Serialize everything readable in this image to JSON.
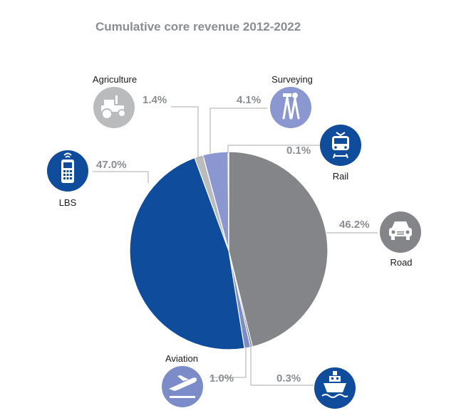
{
  "chart_data": {
    "type": "pie",
    "title": "Cumulative core revenue 2012-2022",
    "start_category": "Road",
    "direction": "clockwise",
    "slices": [
      {
        "category": "Road",
        "value": 46.2,
        "label": "46.2%",
        "color": "#848589",
        "icon": "car-front-icon"
      },
      {
        "category": "Maritime",
        "value": 0.3,
        "label": "0.3%",
        "color": "#5c6678",
        "icon": "ship-icon"
      },
      {
        "category": "Aviation",
        "value": 1.0,
        "label": "1.0%",
        "color": "#7b8cc8",
        "icon": "airplane-takeoff-icon"
      },
      {
        "category": "LBS",
        "value": 47.0,
        "label": "47.0%",
        "color": "#0f4c9c",
        "icon": "mobile-phone-icon"
      },
      {
        "category": "Agriculture",
        "value": 1.4,
        "label": "1.4%",
        "color": "#b9bbbd",
        "icon": "tractor-icon"
      },
      {
        "category": "Surveying",
        "value": 4.1,
        "label": "4.1%",
        "color": "#8a97d0",
        "icon": "surveyor-tripod-icon"
      },
      {
        "category": "Rail",
        "value": 0.1,
        "label": "0.1%",
        "color": "#1a4fa0",
        "icon": "train-icon"
      }
    ]
  },
  "labels": {
    "road": "Road",
    "rail": "Rail",
    "surveying": "Surveying",
    "agriculture": "Agriculture",
    "lbs": "LBS",
    "aviation": "Aviation"
  },
  "colors": {
    "title": "#8a8d91",
    "percent_text": "#8a8d91",
    "leader_line": "#a8abae",
    "icon_blue": "#0f4c9c",
    "icon_gray": "#848589",
    "icon_light_gray": "#b9bbbd",
    "icon_lavender": "#8a97d0",
    "icon_periwinkle": "#7b8cc8"
  }
}
